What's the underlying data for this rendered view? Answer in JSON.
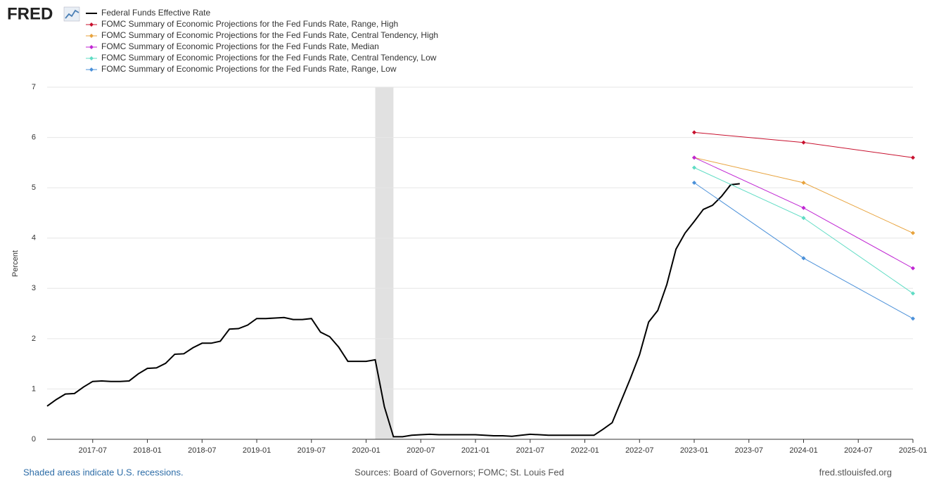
{
  "chart_data": {
    "type": "line",
    "logo": "FRED",
    "ylabel": "Percent",
    "note": "Shaded areas indicate U.S. recessions.",
    "source": "Sources: Board of Governors; FOMC; St. Louis Fed",
    "site": "fred.stlouisfed.org",
    "xlim": [
      "2017-02",
      "2025-01"
    ],
    "xticks": [
      "2017-07",
      "2018-01",
      "2018-07",
      "2019-01",
      "2019-07",
      "2020-01",
      "2020-07",
      "2021-01",
      "2021-07",
      "2022-01",
      "2022-07",
      "2023-01",
      "2023-07",
      "2024-01",
      "2024-07",
      "2025-01"
    ],
    "ylim": [
      0,
      7
    ],
    "yticks": [
      0,
      1,
      2,
      3,
      4,
      5,
      6,
      7
    ],
    "grid": true,
    "recessions": [
      {
        "start": "2020-02",
        "end": "2020-04"
      }
    ],
    "series": [
      {
        "name": "Federal Funds Effective Rate",
        "color": "#000000",
        "x": [
          "2017-02",
          "2017-03",
          "2017-04",
          "2017-05",
          "2017-06",
          "2017-07",
          "2017-08",
          "2017-09",
          "2017-10",
          "2017-11",
          "2017-12",
          "2018-01",
          "2018-02",
          "2018-03",
          "2018-04",
          "2018-05",
          "2018-06",
          "2018-07",
          "2018-08",
          "2018-09",
          "2018-10",
          "2018-11",
          "2018-12",
          "2019-01",
          "2019-02",
          "2019-03",
          "2019-04",
          "2019-05",
          "2019-06",
          "2019-07",
          "2019-08",
          "2019-09",
          "2019-10",
          "2019-11",
          "2019-12",
          "2020-01",
          "2020-02",
          "2020-03",
          "2020-04",
          "2020-05",
          "2020-06",
          "2020-07",
          "2020-08",
          "2020-09",
          "2020-10",
          "2020-11",
          "2020-12",
          "2021-01",
          "2021-02",
          "2021-03",
          "2021-04",
          "2021-05",
          "2021-06",
          "2021-07",
          "2021-08",
          "2021-09",
          "2021-10",
          "2021-11",
          "2021-12",
          "2022-01",
          "2022-02",
          "2022-03",
          "2022-04",
          "2022-05",
          "2022-06",
          "2022-07",
          "2022-08",
          "2022-09",
          "2022-10",
          "2022-11",
          "2022-12",
          "2023-01",
          "2023-02",
          "2023-03",
          "2023-04",
          "2023-05",
          "2023-06"
        ],
        "values": [
          0.66,
          0.79,
          0.9,
          0.91,
          1.04,
          1.15,
          1.16,
          1.15,
          1.15,
          1.16,
          1.3,
          1.41,
          1.42,
          1.51,
          1.69,
          1.7,
          1.82,
          1.91,
          1.91,
          1.95,
          2.19,
          2.2,
          2.27,
          2.4,
          2.4,
          2.41,
          2.42,
          2.38,
          2.38,
          2.4,
          2.13,
          2.04,
          1.83,
          1.55,
          1.55,
          1.55,
          1.58,
          0.65,
          0.05,
          0.05,
          0.08,
          0.09,
          0.1,
          0.09,
          0.09,
          0.09,
          0.09,
          0.09,
          0.08,
          0.07,
          0.07,
          0.06,
          0.08,
          0.1,
          0.09,
          0.08,
          0.08,
          0.08,
          0.08,
          0.08,
          0.08,
          0.2,
          0.33,
          0.77,
          1.21,
          1.68,
          2.33,
          2.56,
          3.08,
          3.78,
          4.1,
          4.33,
          4.57,
          4.65,
          4.83,
          5.06,
          5.08
        ]
      },
      {
        "name": "FOMC Summary of Economic Projections for the Fed Funds Rate, Range, High",
        "color": "#c8102e",
        "marker": "diamond",
        "x": [
          "2023-01",
          "2024-01",
          "2025-01"
        ],
        "values": [
          6.1,
          5.9,
          5.6
        ]
      },
      {
        "name": "FOMC Summary of Economic Projections for the Fed Funds Rate, Central Tendency, High",
        "color": "#e8a33d",
        "marker": "diamond",
        "x": [
          "2023-01",
          "2024-01",
          "2025-01"
        ],
        "values": [
          5.6,
          5.1,
          4.1
        ]
      },
      {
        "name": "FOMC Summary of Economic Projections for the Fed Funds Rate, Median",
        "color": "#c026d3",
        "marker": "diamond",
        "x": [
          "2023-01",
          "2024-01",
          "2025-01"
        ],
        "values": [
          5.6,
          4.6,
          3.4
        ]
      },
      {
        "name": "FOMC Summary of Economic Projections for the Fed Funds Rate, Central Tendency, Low",
        "color": "#5fdcc4",
        "marker": "diamond",
        "x": [
          "2023-01",
          "2024-01",
          "2025-01"
        ],
        "values": [
          5.4,
          4.4,
          2.9
        ]
      },
      {
        "name": "FOMC Summary of Economic Projections for the Fed Funds Rate, Range, Low",
        "color": "#4a90d9",
        "marker": "diamond",
        "x": [
          "2023-01",
          "2024-01",
          "2025-01"
        ],
        "values": [
          5.1,
          3.6,
          2.4
        ]
      }
    ]
  }
}
